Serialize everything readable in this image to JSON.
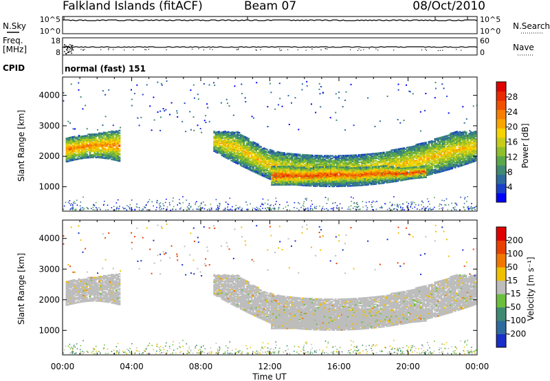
{
  "header": {
    "station": "Falkland Islands (fitACF)",
    "beam": "Beam 07",
    "date": "08/Oct/2010"
  },
  "panels": {
    "nsky": {
      "label": "N.Sky",
      "ticks": [
        "10^5",
        "10^0"
      ]
    },
    "nsearch": {
      "label": "N.Search",
      "ticks": [
        "10^5",
        "10^0"
      ]
    },
    "freq": {
      "label_line1": "Freq.",
      "label_line2": "[MHz]",
      "ticks": [
        "18",
        "8"
      ]
    },
    "nave": {
      "label": "Nave",
      "ticks": [
        "60",
        "0"
      ]
    },
    "cpid": {
      "label": "CPID",
      "value": "normal (fast) 151"
    }
  },
  "axes": {
    "y_label": "Slant Range [km]",
    "y_ticks": [
      "4000",
      "3000",
      "2000",
      "1000"
    ],
    "x_label": "Time UT",
    "x_ticks": [
      "00:00",
      "04:00",
      "08:00",
      "12:00",
      "16:00",
      "20:00",
      "00:00"
    ]
  },
  "colorbars": {
    "power": {
      "label": "Power [dB]",
      "ticks": [
        "28",
        "24",
        "20",
        "16",
        "12",
        "8",
        "4"
      ],
      "colors": [
        "#0000ff",
        "#1a3fc9",
        "#2e6a9e",
        "#3e8a72",
        "#5aa84a",
        "#8fbf2a",
        "#c7cc1a",
        "#f5d400",
        "#f7a600",
        "#f77e00",
        "#f05000",
        "#e82a00",
        "#e00000"
      ]
    },
    "velocity": {
      "label": "Velocity [m s⁻¹]",
      "ticks": [
        "200",
        "100",
        "50",
        "15",
        "-15",
        "-50",
        "-100",
        "-200"
      ],
      "colors": [
        "#1a2ec9",
        "#2e6a9e",
        "#3e8a72",
        "#6cbf3c",
        "#bdbdbd",
        "#f0c000",
        "#f07800",
        "#e84000",
        "#e00000"
      ]
    }
  },
  "chart_data": [
    {
      "type": "heatmap",
      "title": "Power",
      "xlabel": "Time UT",
      "ylabel": "Slant Range [km]",
      "xlim": [
        0,
        24
      ],
      "ylim": [
        200,
        4600
      ],
      "colorbar_range": [
        0,
        32
      ],
      "regions": [
        {
          "t0": 0.1,
          "t1": 3.3,
          "r_lo": 1800,
          "r_hi": 2850,
          "core_power": 24
        },
        {
          "t0": 8.7,
          "t1": 23.9,
          "r_lo": 1000,
          "r_hi": 2800,
          "core_power": 26
        },
        {
          "t0": 12.0,
          "t1": 21.0,
          "r_lo": 1050,
          "r_hi": 1650,
          "core_power": 28
        }
      ]
    },
    {
      "type": "heatmap",
      "title": "Velocity",
      "xlabel": "Time UT",
      "ylabel": "Slant Range [km]",
      "xlim": [
        0,
        24
      ],
      "ylim": [
        200,
        4600
      ],
      "colorbar_range": [
        -200,
        200
      ],
      "regions": [
        {
          "t0": 0.1,
          "t1": 3.3,
          "r_lo": 1800,
          "r_hi": 2850,
          "velocity": 0
        },
        {
          "t0": 8.7,
          "t1": 23.9,
          "r_lo": 1000,
          "r_hi": 2800,
          "velocity": 0
        }
      ]
    }
  ]
}
